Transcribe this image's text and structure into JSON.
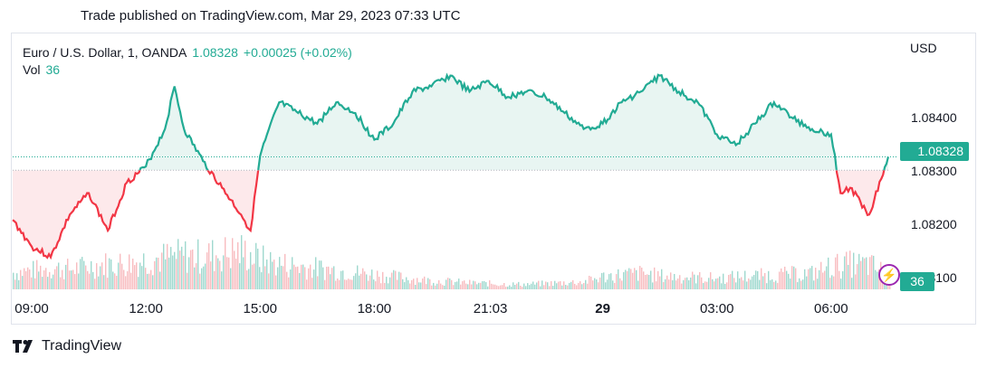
{
  "header": {
    "published": "Trade published on TradingView.com, Mar 29, 2023 07:33 UTC"
  },
  "legend": {
    "symbol": "Euro / U.S. Dollar, 1, OANDA",
    "last_price": "1.08328",
    "change": "+0.00025 (+0.02%)",
    "vol_label": "Vol",
    "vol_value": "36"
  },
  "axis": {
    "currency": "USD",
    "price_tag": "1.08328",
    "vol_tag": "36"
  },
  "brand": {
    "name": "TradingView"
  },
  "colors": {
    "up": "#22ab94",
    "down": "#f23645",
    "up_fill": "#e6f4f1",
    "down_fill": "#fde7e9",
    "vol_up": "#7fcbbd",
    "vol_down": "#f5a5a9"
  },
  "chart_data": {
    "type": "area",
    "series": [
      {
        "name": "EURUSD",
        "x": [
          "08:30",
          "09:00",
          "09:30",
          "10:00",
          "10:30",
          "11:00",
          "11:30",
          "12:00",
          "12:30",
          "12:45",
          "13:00",
          "13:30",
          "14:00",
          "14:30",
          "14:45",
          "15:00",
          "15:30",
          "16:00",
          "16:30",
          "17:00",
          "17:30",
          "18:00",
          "18:30",
          "19:00",
          "19:30",
          "20:00",
          "20:30",
          "21:00",
          "21:30",
          "22:00",
          "22:30",
          "23:00",
          "23:30",
          "00:00",
          "00:30",
          "01:00",
          "01:30",
          "02:00",
          "02:30",
          "03:00",
          "03:30",
          "04:00",
          "04:30",
          "05:00",
          "05:30",
          "06:00",
          "06:15",
          "06:30",
          "07:00",
          "07:30"
        ],
        "values": [
          1.0821,
          1.0816,
          1.0814,
          1.0822,
          1.0826,
          1.0819,
          1.0828,
          1.0831,
          1.0838,
          1.0846,
          1.0838,
          1.0832,
          1.0827,
          1.0822,
          1.0819,
          1.0833,
          1.0843,
          1.0841,
          1.0839,
          1.0843,
          1.0841,
          1.0836,
          1.0839,
          1.0845,
          1.0846,
          1.0848,
          1.0845,
          1.0847,
          1.0844,
          1.0845,
          1.0844,
          1.0841,
          1.0838,
          1.0839,
          1.0843,
          1.0845,
          1.0848,
          1.0845,
          1.0843,
          1.0837,
          1.0835,
          1.0839,
          1.0843,
          1.084,
          1.0838,
          1.0837,
          1.0826,
          1.0827,
          1.0822,
          1.08328
        ]
      },
      {
        "name": "Vol",
        "x": [
          "08:30",
          "09:00",
          "09:30",
          "10:00",
          "10:30",
          "11:00",
          "11:30",
          "12:00",
          "12:30",
          "13:00",
          "13:30",
          "14:00",
          "14:30",
          "15:00",
          "15:30",
          "16:00",
          "16:30",
          "17:00",
          "17:30",
          "18:00",
          "18:30",
          "19:00",
          "19:30",
          "20:00",
          "20:30",
          "21:00",
          "21:30",
          "22:00",
          "22:30",
          "23:00",
          "23:30",
          "00:00",
          "00:30",
          "01:00",
          "01:30",
          "02:00",
          "02:30",
          "03:00",
          "03:30",
          "04:00",
          "04:30",
          "05:00",
          "05:30",
          "06:00",
          "06:30",
          "07:00",
          "07:30"
        ],
        "values": [
          40,
          45,
          50,
          48,
          55,
          60,
          62,
          70,
          75,
          80,
          78,
          85,
          90,
          70,
          60,
          55,
          50,
          45,
          40,
          35,
          30,
          25,
          20,
          18,
          15,
          14,
          12,
          12,
          14,
          16,
          18,
          30,
          35,
          38,
          32,
          30,
          28,
          26,
          30,
          32,
          34,
          36,
          38,
          55,
          60,
          58,
          36
        ]
      }
    ],
    "reference_price": 1.08303,
    "ylim": [
      1.0808,
      1.0852
    ],
    "y_ticks": [
      "1.08400",
      "1.08300",
      "1.08200",
      "1.08100"
    ],
    "y_tick_values": [
      1.084,
      1.083,
      1.082,
      1.081
    ],
    "x_ticks": [
      "09:00",
      "12:00",
      "15:00",
      "18:00",
      "21:03",
      "29",
      "03:00",
      "06:00"
    ],
    "x_tick_values": [
      "09:00",
      "12:00",
      "15:00",
      "18:00",
      "21:03",
      "00:00",
      "03:00",
      "06:00"
    ],
    "grid": false
  }
}
